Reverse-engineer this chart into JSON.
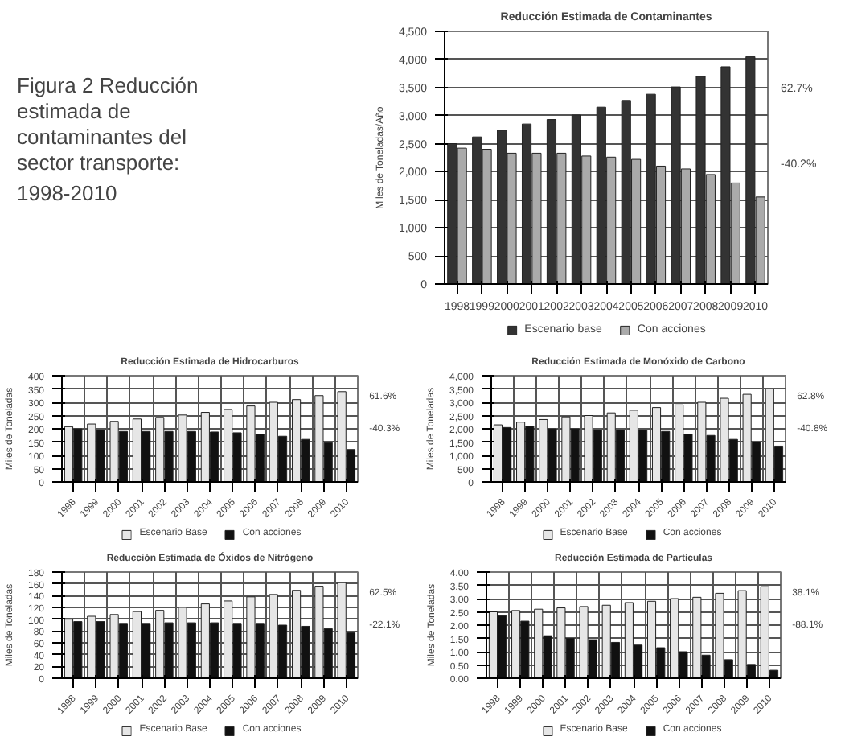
{
  "chart_data": [
    {
      "type": "other",
      "title": "Figura 2 Reducción estimada de contaminantes del sector transporte: 1998-2010"
    },
    {
      "type": "bar",
      "title": "Reducción Estimada de Contaminantes",
      "ylabel": "Miles de Toneladas/Año",
      "categories": [
        "1998",
        "1999",
        "2000",
        "2001",
        "2002",
        "2003",
        "2004",
        "2005",
        "2006",
        "2007",
        "2008",
        "2009",
        "2010"
      ],
      "series": [
        {
          "name": "Escenario base",
          "color": "#333333",
          "values": [
            2500,
            2620,
            2740,
            2850,
            2930,
            3010,
            3150,
            3270,
            3380,
            3510,
            3700,
            3870,
            4050
          ]
        },
        {
          "name": "Con acciones",
          "color": "#aaaaaa",
          "values": [
            2420,
            2400,
            2330,
            2330,
            2330,
            2280,
            2260,
            2220,
            2100,
            2050,
            1950,
            1800,
            1550
          ]
        }
      ],
      "ylim": [
        0,
        4500
      ],
      "yticks": [
        0,
        {
          "value": 500,
          "label": "500"
        },
        {
          "value": 1000,
          "label": "1,000"
        },
        {
          "value": 1500,
          "label": "1,500"
        },
        {
          "value": 2000,
          "label": "2,000"
        },
        {
          "value": 2500,
          "label": "2,500"
        },
        {
          "value": 3000,
          "label": "3,000"
        },
        {
          "value": 3500,
          "label": "3,500"
        },
        {
          "value": 4000,
          "label": "4,000"
        },
        {
          "value": 4500,
          "label": "4,500"
        }
      ],
      "grid": "y",
      "legend": "bottom",
      "annotations": [
        "62.7%",
        "-40.2%"
      ]
    },
    {
      "type": "bar",
      "title": "Reducción Estimada de Hidrocarburos",
      "ylabel": "Miles de Toneladas",
      "categories": [
        "1998",
        "1999",
        "2000",
        "2001",
        "2002",
        "2003",
        "2004",
        "2005",
        "2006",
        "2007",
        "2008",
        "2009",
        "2010"
      ],
      "series": [
        {
          "name": "Escenario Base",
          "color": "#e6e6e6",
          "values": [
            208,
            218,
            228,
            237,
            243,
            252,
            262,
            273,
            286,
            300,
            310,
            325,
            340
          ]
        },
        {
          "name": "Con acciones",
          "color": "#111111",
          "values": [
            200,
            195,
            190,
            190,
            190,
            190,
            188,
            185,
            180,
            172,
            160,
            148,
            122
          ]
        }
      ],
      "ylim": [
        0,
        400
      ],
      "yticks": [
        0,
        50,
        100,
        150,
        200,
        250,
        300,
        350,
        400
      ],
      "grid": true,
      "legend": "bottom",
      "annotations": [
        "61.6%",
        "-40.3%"
      ]
    },
    {
      "type": "bar",
      "title": "Reducción Estimada de Monóxido de Carbono",
      "ylabel": "Miles de Toneladas",
      "categories": [
        "1998",
        "1999",
        "2000",
        "2001",
        "2002",
        "2003",
        "2004",
        "2005",
        "2006",
        "2007",
        "2008",
        "2009",
        "2010"
      ],
      "series": [
        {
          "name": "Escenario Base",
          "color": "#e6e6e6",
          "values": [
            2150,
            2250,
            2350,
            2450,
            2500,
            2600,
            2700,
            2800,
            2900,
            3000,
            3150,
            3300,
            3500
          ]
        },
        {
          "name": "Con acciones",
          "color": "#111111",
          "values": [
            2050,
            2100,
            2000,
            2000,
            1950,
            1950,
            1950,
            1900,
            1800,
            1750,
            1600,
            1500,
            1350
          ]
        }
      ],
      "ylim": [
        0,
        4000
      ],
      "yticks": [
        0,
        {
          "value": 500,
          "label": "500"
        },
        {
          "value": 1000,
          "label": "1,000"
        },
        {
          "value": 1500,
          "label": "1,500"
        },
        {
          "value": 2000,
          "label": "2,000"
        },
        {
          "value": 2500,
          "label": "2,500"
        },
        {
          "value": 3000,
          "label": "3,000"
        },
        {
          "value": 3500,
          "label": "3,500"
        },
        {
          "value": 4000,
          "label": "4,000"
        }
      ],
      "grid": true,
      "legend": "bottom",
      "annotations": [
        "62.8%",
        "-40.8%"
      ]
    },
    {
      "type": "bar",
      "title": "Reducción Estimada de Óxidos de Nitrógeno",
      "ylabel": "Miles de Toneladas",
      "categories": [
        "1998",
        "1999",
        "2000",
        "2001",
        "2002",
        "2003",
        "2004",
        "2005",
        "2006",
        "2007",
        "2008",
        "2009",
        "2010"
      ],
      "series": [
        {
          "name": "Escenario Base",
          "color": "#e6e6e6",
          "values": [
            100,
            105,
            108,
            113,
            115,
            120,
            126,
            131,
            138,
            142,
            149,
            156,
            162
          ]
        },
        {
          "name": "Con acciones",
          "color": "#111111",
          "values": [
            96,
            96,
            93,
            93,
            94,
            94,
            94,
            93,
            93,
            90,
            88,
            84,
            77
          ]
        }
      ],
      "ylim": [
        0,
        180
      ],
      "yticks": [
        0,
        20,
        40,
        60,
        80,
        100,
        120,
        140,
        160,
        180
      ],
      "grid": true,
      "legend": "bottom",
      "annotations": [
        "62.5%",
        "-22.1%"
      ]
    },
    {
      "type": "bar",
      "title": "Reducción Estimada de Partículas",
      "ylabel": "Miles de Toneladas",
      "categories": [
        "1998",
        "1999",
        "2000",
        "2001",
        "2002",
        "2003",
        "2004",
        "2005",
        "2006",
        "2007",
        "2008",
        "2009",
        "2010"
      ],
      "series": [
        {
          "name": "Escenario Base",
          "color": "#e6e6e6",
          "values": [
            2.5,
            2.55,
            2.6,
            2.65,
            2.7,
            2.75,
            2.85,
            2.9,
            3.0,
            3.05,
            3.2,
            3.3,
            3.45
          ]
        },
        {
          "name": "Con acciones",
          "color": "#111111",
          "values": [
            2.35,
            2.15,
            1.6,
            1.5,
            1.45,
            1.35,
            1.25,
            1.15,
            1.0,
            0.87,
            0.7,
            0.52,
            0.3
          ]
        }
      ],
      "ylim": [
        0,
        4
      ],
      "yticks": [
        {
          "value": 0,
          "label": "0.00"
        },
        {
          "value": 0.5,
          "label": "0.50"
        },
        {
          "value": 1,
          "label": "1.00"
        },
        {
          "value": 1.5,
          "label": "1.50"
        },
        {
          "value": 2,
          "label": "2.00"
        },
        {
          "value": 2.5,
          "label": "2.50"
        },
        {
          "value": 3,
          "label": "3.00"
        },
        {
          "value": 3.5,
          "label": "3.50"
        },
        {
          "value": 4,
          "label": "4.00"
        }
      ],
      "grid": true,
      "legend": "bottom",
      "annotations": [
        "38.1%",
        "-88.1%"
      ]
    }
  ]
}
